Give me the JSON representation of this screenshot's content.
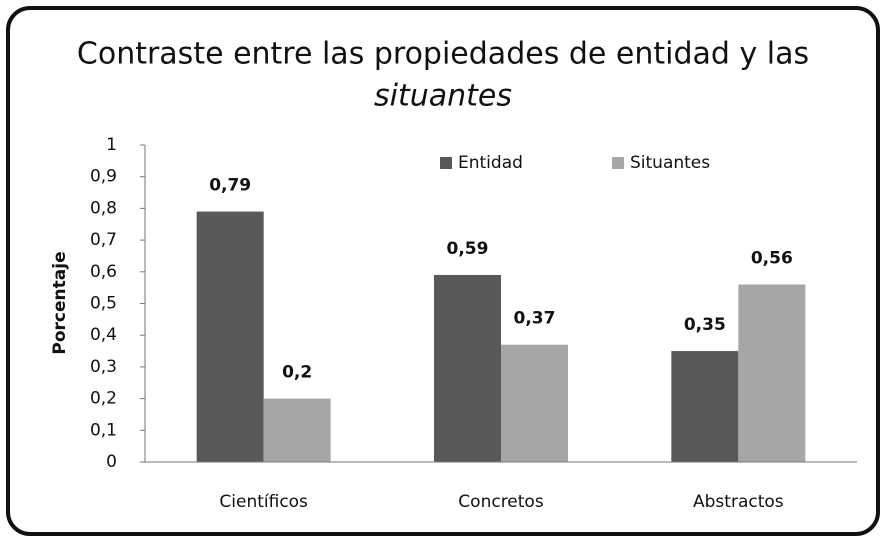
{
  "chart_data": {
    "type": "bar",
    "title": [
      "Contraste entre las propiedades de entidad y las",
      "situantes"
    ],
    "y_label": "Porcentaje",
    "categories": [
      "Científicos",
      "Concretos",
      "Abstractos"
    ],
    "series": [
      {
        "name": "Entidad",
        "color": "#595959",
        "values": [
          0.79,
          0.59,
          0.35
        ],
        "value_labels": [
          "0,79",
          "0,59",
          "0,35"
        ]
      },
      {
        "name": "Situantes",
        "color": "#a6a6a6",
        "values": [
          0.2,
          0.37,
          0.56
        ],
        "value_labels": [
          "0,2",
          "0,37",
          "0,56"
        ]
      }
    ],
    "ylim": [
      0,
      1
    ],
    "yticks": [
      0,
      {
        "value": 0.1,
        "label": "0,1"
      },
      {
        "value": 0.2,
        "label": "0,2"
      },
      {
        "value": 0.3,
        "label": "0,3"
      },
      {
        "value": 0.4,
        "label": "0,4"
      },
      {
        "value": 0.5,
        "label": "0,5"
      },
      {
        "value": 0.6,
        "label": "0,6"
      },
      {
        "value": 0.7,
        "label": "0,7"
      },
      {
        "value": 0.8,
        "label": "0,8"
      },
      {
        "value": 0.9,
        "label": "0,9"
      },
      1
    ],
    "grid": false,
    "legend": "top"
  }
}
